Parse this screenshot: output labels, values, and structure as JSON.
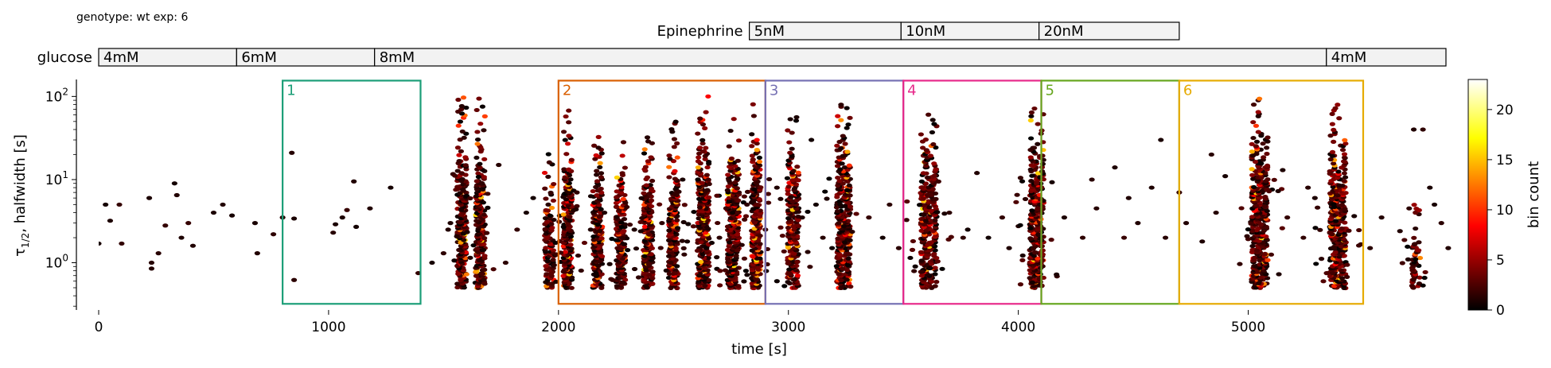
{
  "chart_data": {
    "type": "heatmap",
    "subtitle": "genotype: wt  exp: 6",
    "xlabel": "time [s]",
    "ylabel_main": "τ",
    "ylabel_sub": "1/2",
    "ylabel_rest": ", halfwidth [s]",
    "xlim": [
      0,
      5900
    ],
    "ylim": [
      0.27,
      160
    ],
    "yscale": "log",
    "x_ticks": [
      {
        "value": 0,
        "label": "0"
      },
      {
        "value": 1000,
        "label": "1000"
      },
      {
        "value": 2000,
        "label": "2000"
      },
      {
        "value": 3000,
        "label": "3000"
      },
      {
        "value": 4000,
        "label": "4000"
      },
      {
        "value": 5000,
        "label": "5000"
      }
    ],
    "y_ticks": [
      {
        "value": 1,
        "label_base": "10",
        "label_exp": "0"
      },
      {
        "value": 10,
        "label_base": "10",
        "label_exp": "1"
      },
      {
        "value": 100,
        "label_base": "10",
        "label_exp": "2"
      }
    ],
    "colorbar": {
      "label": "bin count",
      "range": [
        0,
        23
      ],
      "ticks": [
        {
          "value": 0,
          "label": "0"
        },
        {
          "value": 5,
          "label": "5"
        },
        {
          "value": 10,
          "label": "10"
        },
        {
          "value": 15,
          "label": "15"
        },
        {
          "value": 20,
          "label": "20"
        }
      ],
      "colormap": "hot"
    },
    "stimulus_bars": [
      {
        "label": "Epinephrine",
        "segments": [
          {
            "start": 2830,
            "end": 3490,
            "label": "5nM"
          },
          {
            "start": 3490,
            "end": 4090,
            "label": "10nM"
          },
          {
            "start": 4090,
            "end": 4700,
            "label": "20nM"
          }
        ]
      },
      {
        "label": "glucose",
        "segments": [
          {
            "start": 0,
            "end": 600,
            "label": "4mM"
          },
          {
            "start": 600,
            "end": 1200,
            "label": "6mM"
          },
          {
            "start": 1200,
            "end": 5340,
            "label": "8mM"
          },
          {
            "start": 5340,
            "end": 5860,
            "label": "4mM"
          }
        ]
      }
    ],
    "windows": [
      {
        "label": "1",
        "start": 800,
        "end": 1400,
        "color": "#1b9e77"
      },
      {
        "label": "2",
        "start": 2000,
        "end": 2900,
        "color": "#d95f02"
      },
      {
        "label": "3",
        "start": 2900,
        "end": 3500,
        "color": "#7570b3"
      },
      {
        "label": "4",
        "start": 3500,
        "end": 4100,
        "color": "#e7298a"
      },
      {
        "label": "5",
        "start": 4100,
        "end": 4700,
        "color": "#66a61e"
      },
      {
        "label": "6",
        "start": 4700,
        "end": 5500,
        "color": "#e6ab02"
      }
    ],
    "window_y_range": [
      0.32,
      155
    ],
    "clusters": [
      {
        "x": 1580,
        "width": 40,
        "ymin": 0.5,
        "ymax": 120,
        "density": 6
      },
      {
        "x": 1660,
        "width": 40,
        "ymin": 0.5,
        "ymax": 100,
        "density": 6
      },
      {
        "x": 1960,
        "width": 40,
        "ymin": 0.5,
        "ymax": 20,
        "density": 5
      },
      {
        "x": 2040,
        "width": 40,
        "ymin": 0.5,
        "ymax": 80,
        "density": 6
      },
      {
        "x": 2170,
        "width": 40,
        "ymin": 0.5,
        "ymax": 40,
        "density": 6
      },
      {
        "x": 2270,
        "width": 40,
        "ymin": 0.5,
        "ymax": 30,
        "density": 6
      },
      {
        "x": 2390,
        "width": 40,
        "ymin": 0.5,
        "ymax": 40,
        "density": 7
      },
      {
        "x": 2500,
        "width": 40,
        "ymin": 0.5,
        "ymax": 50,
        "density": 6
      },
      {
        "x": 2630,
        "width": 50,
        "ymin": 0.5,
        "ymax": 100,
        "density": 8
      },
      {
        "x": 2760,
        "width": 50,
        "ymin": 0.5,
        "ymax": 60,
        "density": 8
      },
      {
        "x": 2860,
        "width": 40,
        "ymin": 0.5,
        "ymax": 80,
        "density": 7
      },
      {
        "x": 3020,
        "width": 50,
        "ymin": 0.5,
        "ymax": 60,
        "density": 7
      },
      {
        "x": 3240,
        "width": 60,
        "ymin": 0.5,
        "ymax": 80,
        "density": 9
      },
      {
        "x": 3610,
        "width": 70,
        "ymin": 0.5,
        "ymax": 80,
        "density": 9
      },
      {
        "x": 4080,
        "width": 60,
        "ymin": 0.5,
        "ymax": 80,
        "density": 9
      },
      {
        "x": 5050,
        "width": 70,
        "ymin": 0.5,
        "ymax": 100,
        "density": 10
      },
      {
        "x": 5390,
        "width": 70,
        "ymin": 0.5,
        "ymax": 80,
        "density": 10
      },
      {
        "x": 5730,
        "width": 40,
        "ymin": 0.5,
        "ymax": 5,
        "density": 4
      }
    ],
    "points": [
      [
        0,
        1.7
      ],
      [
        30,
        5
      ],
      [
        50,
        3.2
      ],
      [
        90,
        5
      ],
      [
        100,
        1.7
      ],
      [
        220,
        6
      ],
      [
        230,
        1.0
      ],
      [
        230,
        0.85
      ],
      [
        260,
        1.3
      ],
      [
        290,
        2.8
      ],
      [
        330,
        9
      ],
      [
        340,
        6.5
      ],
      [
        360,
        2.0
      ],
      [
        390,
        3.0
      ],
      [
        410,
        1.6
      ],
      [
        500,
        4.0
      ],
      [
        540,
        5.0
      ],
      [
        580,
        3.7
      ],
      [
        680,
        3.0
      ],
      [
        690,
        1.3
      ],
      [
        760,
        2.2
      ],
      [
        800,
        3.5
      ],
      [
        840,
        21
      ],
      [
        850,
        3.4
      ],
      [
        850,
        0.62
      ],
      [
        1020,
        2.3
      ],
      [
        1030,
        2.9
      ],
      [
        1060,
        3.5
      ],
      [
        1080,
        4.3
      ],
      [
        1110,
        9.5
      ],
      [
        1120,
        2.7
      ],
      [
        1180,
        4.5
      ],
      [
        1270,
        8.0
      ],
      [
        1390,
        0.75
      ],
      [
        1450,
        1.0
      ],
      [
        1500,
        1.3
      ],
      [
        1520,
        2.5
      ],
      [
        1530,
        3.0
      ],
      [
        1740,
        15
      ],
      [
        1770,
        1.0
      ],
      [
        1820,
        2.5
      ],
      [
        1860,
        4.0
      ],
      [
        1890,
        6.0
      ],
      [
        2080,
        7.0
      ],
      [
        2140,
        2.5
      ],
      [
        2200,
        4.0
      ],
      [
        2330,
        2.5
      ],
      [
        2450,
        3.0
      ],
      [
        2540,
        10
      ],
      [
        2560,
        1.8
      ],
      [
        2700,
        2.0
      ],
      [
        2820,
        5.0
      ],
      [
        2900,
        2.5
      ],
      [
        2950,
        8.0
      ],
      [
        3060,
        3.5
      ],
      [
        3100,
        30
      ],
      [
        3120,
        5.0
      ],
      [
        3150,
        2.0
      ],
      [
        3190,
        1.5
      ],
      [
        3350,
        3.5
      ],
      [
        3410,
        2.0
      ],
      [
        3440,
        5.0
      ],
      [
        3480,
        1.5
      ],
      [
        3700,
        4.0
      ],
      [
        3760,
        2.0
      ],
      [
        3780,
        2.5
      ],
      [
        3820,
        12
      ],
      [
        3870,
        2.0
      ],
      [
        3930,
        3.5
      ],
      [
        3960,
        1.5
      ],
      [
        4200,
        3.5
      ],
      [
        4280,
        2.0
      ],
      [
        4320,
        10
      ],
      [
        4340,
        4.5
      ],
      [
        4420,
        14
      ],
      [
        4460,
        2.0
      ],
      [
        4480,
        6.0
      ],
      [
        4520,
        3.0
      ],
      [
        4580,
        8.0
      ],
      [
        4620,
        30
      ],
      [
        4640,
        2.0
      ],
      [
        4700,
        7.0
      ],
      [
        4730,
        3.0
      ],
      [
        4800,
        1.8
      ],
      [
        4840,
        20
      ],
      [
        4860,
        4.0
      ],
      [
        4900,
        11
      ],
      [
        5150,
        13
      ],
      [
        5170,
        3.5
      ],
      [
        5240,
        2.0
      ],
      [
        5260,
        8.0
      ],
      [
        5290,
        6.0
      ],
      [
        5530,
        1.5
      ],
      [
        5580,
        3.5
      ],
      [
        5660,
        2.4
      ],
      [
        5700,
        4.5
      ],
      [
        5720,
        40
      ],
      [
        5760,
        40
      ],
      [
        5790,
        8.0
      ],
      [
        5810,
        5.0
      ],
      [
        5840,
        3.0
      ],
      [
        5870,
        1.5
      ]
    ]
  }
}
